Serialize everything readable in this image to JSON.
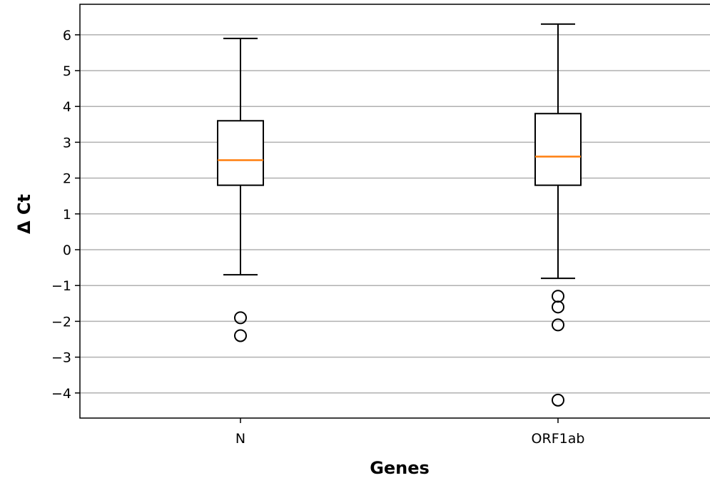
{
  "chart_data": {
    "type": "box",
    "title": "",
    "xlabel": "Genes",
    "ylabel": "Δ Ct",
    "ylim": [
      -4.7,
      6.9
    ],
    "yticks": [
      -4,
      -3,
      -2,
      -1,
      0,
      1,
      2,
      3,
      4,
      5,
      6
    ],
    "ytick_labels": [
      "−4",
      "−3",
      "−2",
      "−1",
      "0",
      "1",
      "2",
      "3",
      "4",
      "5",
      "6"
    ],
    "grid": "horizontal",
    "categories": [
      "N",
      "ORF1ab"
    ],
    "boxes": [
      {
        "category": "N",
        "whisker_low": -0.7,
        "q1": 1.8,
        "median": 2.5,
        "q3": 3.6,
        "whisker_high": 5.9,
        "outliers": [
          -1.9,
          -2.4
        ]
      },
      {
        "category": "ORF1ab",
        "whisker_low": -0.8,
        "q1": 1.8,
        "median": 2.6,
        "q3": 3.8,
        "whisker_high": 6.3,
        "outliers": [
          -1.3,
          -1.6,
          -2.1,
          -4.2
        ]
      }
    ],
    "colors": {
      "box": "#000000",
      "median": "#ff7f0e",
      "grid": "#b0b0b0",
      "outlier": "#000000"
    }
  }
}
